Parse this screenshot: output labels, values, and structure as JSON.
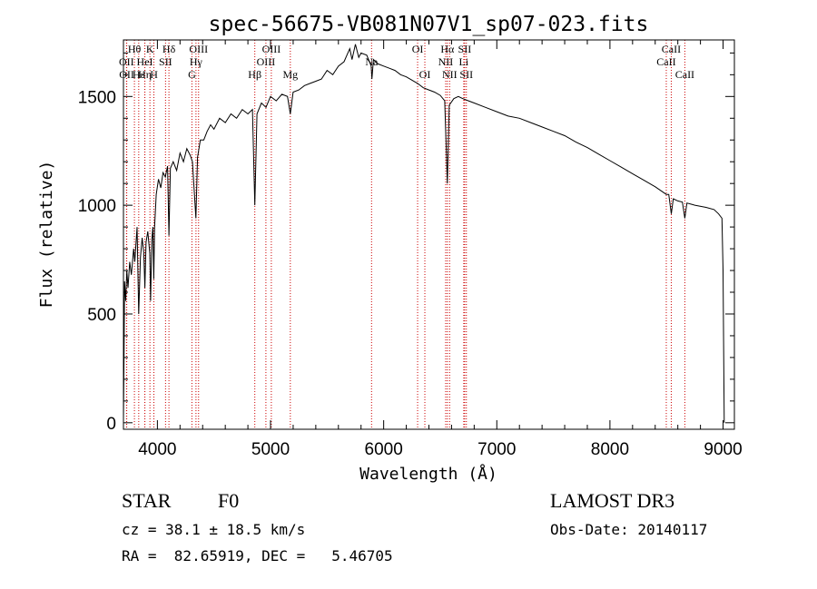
{
  "chart_data": {
    "type": "line",
    "title": "spec-56675-VB081N07V1_sp07-023.fits",
    "xlabel": "Wavelength (Å)",
    "ylabel": "Flux (relative)",
    "xlim": [
      3700,
      9100
    ],
    "ylim": [
      -30,
      1760
    ],
    "x_ticks": [
      4000,
      5000,
      6000,
      7000,
      8000,
      9000
    ],
    "y_ticks": [
      0,
      500,
      1000,
      1500
    ],
    "grid": false,
    "series": [
      {
        "name": "flux",
        "color": "#000000",
        "points": [
          [
            3700,
            20
          ],
          [
            3705,
            300
          ],
          [
            3710,
            650
          ],
          [
            3720,
            560
          ],
          [
            3730,
            700
          ],
          [
            3740,
            620
          ],
          [
            3755,
            740
          ],
          [
            3770,
            680
          ],
          [
            3790,
            800
          ],
          [
            3800,
            740
          ],
          [
            3820,
            900
          ],
          [
            3835,
            500
          ],
          [
            3850,
            760
          ],
          [
            3865,
            850
          ],
          [
            3880,
            780
          ],
          [
            3889,
            620
          ],
          [
            3900,
            830
          ],
          [
            3915,
            880
          ],
          [
            3933,
            780
          ],
          [
            3940,
            560
          ],
          [
            3950,
            840
          ],
          [
            3960,
            900
          ],
          [
            3968,
            660
          ],
          [
            3975,
            900
          ],
          [
            3990,
            1050
          ],
          [
            4010,
            1120
          ],
          [
            4030,
            1080
          ],
          [
            4050,
            1150
          ],
          [
            4070,
            1130
          ],
          [
            4090,
            1180
          ],
          [
            4102,
            860
          ],
          [
            4115,
            1170
          ],
          [
            4140,
            1200
          ],
          [
            4170,
            1160
          ],
          [
            4200,
            1240
          ],
          [
            4230,
            1200
          ],
          [
            4260,
            1260
          ],
          [
            4290,
            1230
          ],
          [
            4310,
            1200
          ],
          [
            4340,
            940
          ],
          [
            4355,
            1220
          ],
          [
            4380,
            1300
          ],
          [
            4410,
            1300
          ],
          [
            4440,
            1340
          ],
          [
            4470,
            1370
          ],
          [
            4500,
            1350
          ],
          [
            4550,
            1400
          ],
          [
            4600,
            1380
          ],
          [
            4650,
            1420
          ],
          [
            4700,
            1400
          ],
          [
            4750,
            1440
          ],
          [
            4800,
            1420
          ],
          [
            4840,
            1440
          ],
          [
            4861,
            1000
          ],
          [
            4880,
            1420
          ],
          [
            4920,
            1470
          ],
          [
            4960,
            1450
          ],
          [
            5000,
            1500
          ],
          [
            5050,
            1480
          ],
          [
            5100,
            1510
          ],
          [
            5150,
            1500
          ],
          [
            5175,
            1420
          ],
          [
            5200,
            1520
          ],
          [
            5250,
            1530
          ],
          [
            5300,
            1550
          ],
          [
            5350,
            1560
          ],
          [
            5400,
            1570
          ],
          [
            5450,
            1580
          ],
          [
            5500,
            1620
          ],
          [
            5550,
            1600
          ],
          [
            5600,
            1640
          ],
          [
            5650,
            1660
          ],
          [
            5700,
            1720
          ],
          [
            5720,
            1670
          ],
          [
            5750,
            1740
          ],
          [
            5780,
            1680
          ],
          [
            5800,
            1700
          ],
          [
            5850,
            1690
          ],
          [
            5890,
            1640
          ],
          [
            5896,
            1580
          ],
          [
            5910,
            1670
          ],
          [
            5950,
            1650
          ],
          [
            6000,
            1640
          ],
          [
            6050,
            1630
          ],
          [
            6100,
            1620
          ],
          [
            6150,
            1600
          ],
          [
            6200,
            1590
          ],
          [
            6250,
            1575
          ],
          [
            6300,
            1560
          ],
          [
            6350,
            1540
          ],
          [
            6400,
            1530
          ],
          [
            6450,
            1520
          ],
          [
            6500,
            1505
          ],
          [
            6540,
            1480
          ],
          [
            6563,
            1100
          ],
          [
            6580,
            1460
          ],
          [
            6620,
            1490
          ],
          [
            6660,
            1500
          ],
          [
            6700,
            1490
          ],
          [
            6750,
            1480
          ],
          [
            6800,
            1470
          ],
          [
            6900,
            1450
          ],
          [
            7000,
            1430
          ],
          [
            7100,
            1410
          ],
          [
            7200,
            1400
          ],
          [
            7300,
            1380
          ],
          [
            7400,
            1360
          ],
          [
            7500,
            1340
          ],
          [
            7600,
            1320
          ],
          [
            7700,
            1290
          ],
          [
            7800,
            1265
          ],
          [
            7900,
            1235
          ],
          [
            8000,
            1205
          ],
          [
            8100,
            1175
          ],
          [
            8200,
            1145
          ],
          [
            8300,
            1115
          ],
          [
            8400,
            1085
          ],
          [
            8498,
            1050
          ],
          [
            8520,
            1050
          ],
          [
            8542,
            960
          ],
          [
            8560,
            1030
          ],
          [
            8600,
            1020
          ],
          [
            8640,
            1015
          ],
          [
            8662,
            940
          ],
          [
            8680,
            1010
          ],
          [
            8750,
            1000
          ],
          [
            8850,
            990
          ],
          [
            8920,
            980
          ],
          [
            8960,
            960
          ],
          [
            8990,
            940
          ],
          [
            9000,
            700
          ],
          [
            9010,
            0
          ]
        ]
      }
    ],
    "line_markers": [
      {
        "label": "Hθ",
        "wavelength": 3797,
        "row": 1
      },
      {
        "label": "OII",
        "wavelength": 3727,
        "row": 2
      },
      {
        "label": "OII",
        "wavelength": 3729,
        "row": 3
      },
      {
        "label": "Hε",
        "wavelength": 3835,
        "row": 3
      },
      {
        "label": "HeI",
        "wavelength": 3889,
        "row": 2
      },
      {
        "label": "Hη",
        "wavelength": 3889,
        "row": 3
      },
      {
        "label": "K",
        "wavelength": 3934,
        "row": 1
      },
      {
        "label": "H",
        "wavelength": 3969,
        "row": 3
      },
      {
        "label": "SII",
        "wavelength": 4072,
        "row": 2
      },
      {
        "label": "Hδ",
        "wavelength": 4102,
        "row": 1
      },
      {
        "label": "OIII",
        "wavelength": 4364,
        "row": 1
      },
      {
        "label": "Hγ",
        "wavelength": 4341,
        "row": 2
      },
      {
        "label": "G",
        "wavelength": 4305,
        "row": 3
      },
      {
        "label": "Hβ",
        "wavelength": 4861,
        "row": 3
      },
      {
        "label": "OIII",
        "wavelength": 4959,
        "row": 2
      },
      {
        "label": "OIII",
        "wavelength": 5007,
        "row": 1
      },
      {
        "label": "Mg",
        "wavelength": 5175,
        "row": 3
      },
      {
        "label": "Na",
        "wavelength": 5893,
        "row": 2
      },
      {
        "label": "OI",
        "wavelength": 6300,
        "row": 1
      },
      {
        "label": "OI",
        "wavelength": 6364,
        "row": 3
      },
      {
        "label": "NII",
        "wavelength": 6548,
        "row": 2
      },
      {
        "label": "Hα",
        "wavelength": 6563,
        "row": 1
      },
      {
        "label": "NII",
        "wavelength": 6583,
        "row": 3
      },
      {
        "label": "SII",
        "wavelength": 6716,
        "row": 1
      },
      {
        "label": "Li",
        "wavelength": 6708,
        "row": 2
      },
      {
        "label": "SII",
        "wavelength": 6731,
        "row": 3
      },
      {
        "label": "CaII",
        "wavelength": 8498,
        "row": 2
      },
      {
        "label": "CaII",
        "wavelength": 8542,
        "row": 1
      },
      {
        "label": "CaII",
        "wavelength": 8662,
        "row": 3
      }
    ],
    "marker_color": "#cc0000"
  },
  "info": {
    "class": "STAR",
    "subclass": "F0",
    "survey": "LAMOST DR3",
    "cz": "cz = 38.1 ± 18.5 km/s",
    "obs_date": "Obs-Date: 20140117",
    "coords": "RA =  82.65919, DEC =   5.46705"
  }
}
